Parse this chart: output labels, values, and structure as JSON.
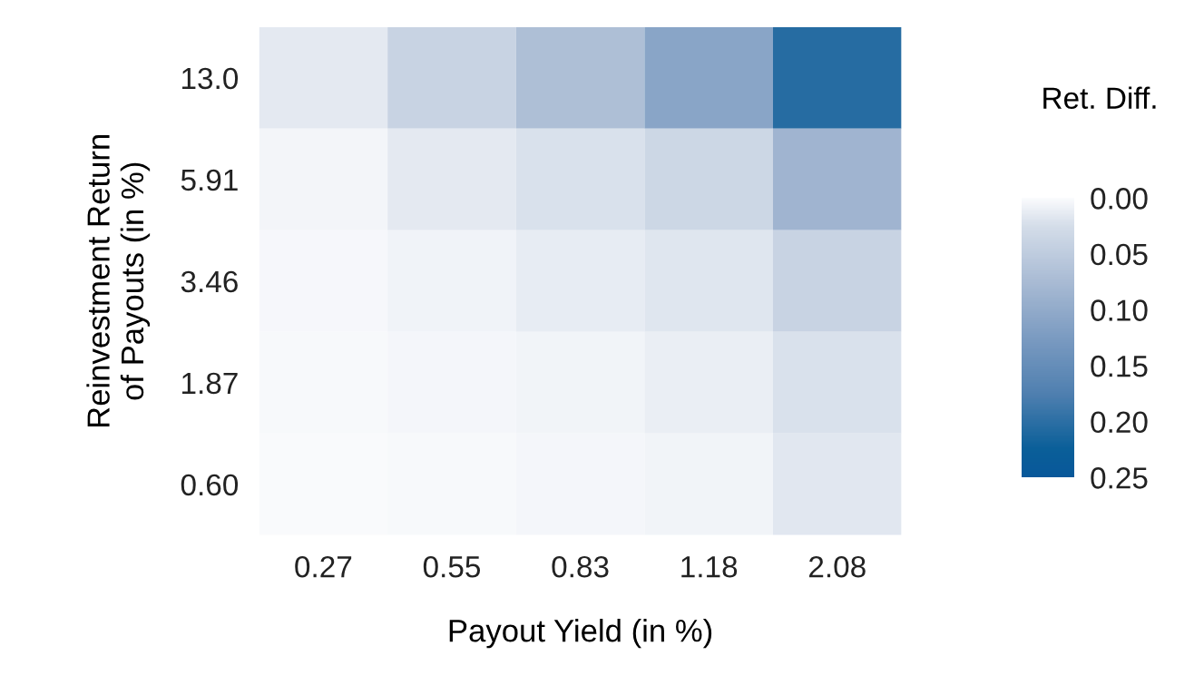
{
  "chart_data": {
    "type": "heatmap",
    "xlabel": "Payout Yield (in %)",
    "ylabel": "Reinvestment Return\nof Payouts (in %)",
    "clabel": "Ret. Diff.",
    "categories": [
      "0.27",
      "0.55",
      "0.83",
      "1.18",
      "2.08"
    ],
    "y_categories": [
      "13.0",
      "5.91",
      "3.46",
      "1.87",
      "0.60"
    ],
    "cells": [
      [
        0.015,
        0.04,
        0.07,
        0.11,
        0.205
      ],
      [
        0.005,
        0.015,
        0.022,
        0.035,
        0.085
      ],
      [
        0.003,
        0.007,
        0.013,
        0.018,
        0.04
      ],
      [
        0.002,
        0.004,
        0.006,
        0.011,
        0.022
      ],
      [
        0.001,
        0.002,
        0.004,
        0.006,
        0.017
      ]
    ],
    "clim": [
      0,
      0.25
    ],
    "cticks": [
      {
        "value": 0,
        "label": "0.00"
      },
      {
        "value": 0.05,
        "label": "0.05"
      },
      {
        "value": 0.1,
        "label": "0.10"
      },
      {
        "value": 0.15,
        "label": "0.15"
      },
      {
        "value": 0.2,
        "label": "0.20"
      },
      {
        "value": 0.25,
        "label": "0.25"
      }
    ]
  }
}
